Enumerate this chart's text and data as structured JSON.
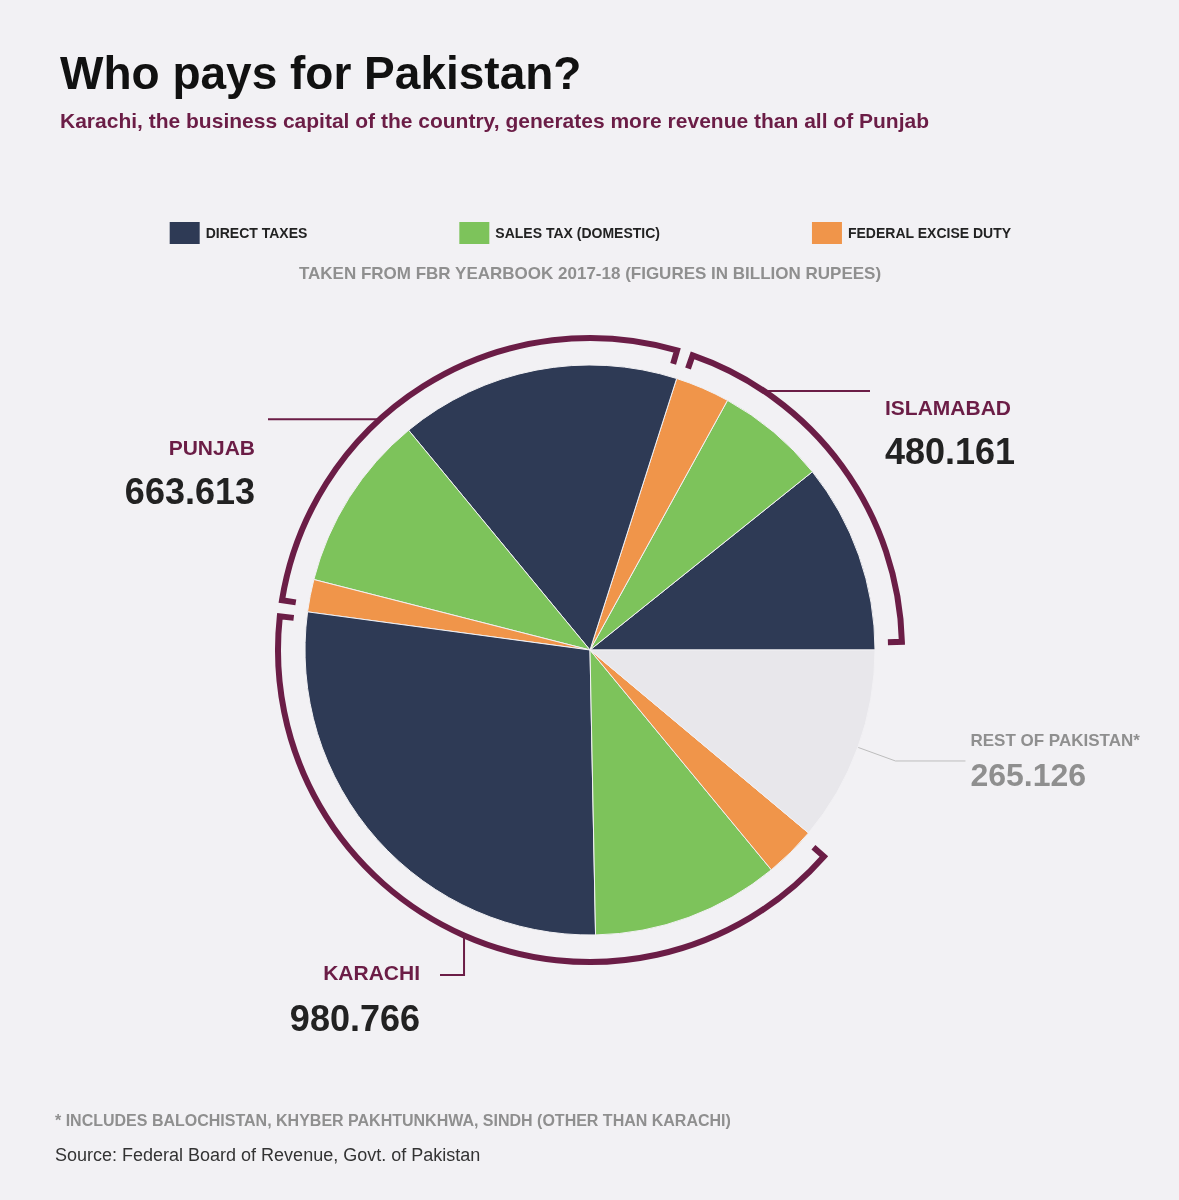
{
  "chart_data": {
    "type": "pie",
    "title": "Who pays for Pakistan?",
    "subtitle": "Karachi, the business capital of the country, generates more revenue than all of Punjab",
    "categories": [
      "DIRECT TAXES",
      "SALES TAX (DOMESTIC)",
      "FEDERAL EXCISE DUTY",
      null,
      null,
      null,
      null,
      null,
      null,
      "REST OF PAKISTAN*"
    ],
    "values": [
      257,
      149,
      74,
      380,
      240,
      44,
      656,
      255,
      70,
      265.126
    ],
    "colors": [
      "#2e3a55",
      "#7dc35b",
      "#f0954a",
      "#2e3a55",
      "#7dc35b",
      "#f0954a",
      "#2e3a55",
      "#7dc35b",
      "#f0954a",
      "#e8e7eb"
    ],
    "value_labels": [
      null,
      null,
      null,
      null,
      null,
      null,
      null,
      null,
      null,
      "265.126"
    ],
    "legend": "top",
    "annotations": [
      "TAKEN FROM FBR YEARBOOK 2017-18 (FIGURES IN BILLION RUPEES)",
      "ISLAMABAD",
      "480.161",
      "PUNJAB",
      "663.613",
      "KARACHI",
      "980.766",
      "* INCLUDES BALOCHISTAN, KHYBER PAKHTUNKHWA, SINDH (OTHER THAN KARACHI)",
      "Source: Federal Board of Revenue, Govt. of Pakistan"
    ]
  }
}
